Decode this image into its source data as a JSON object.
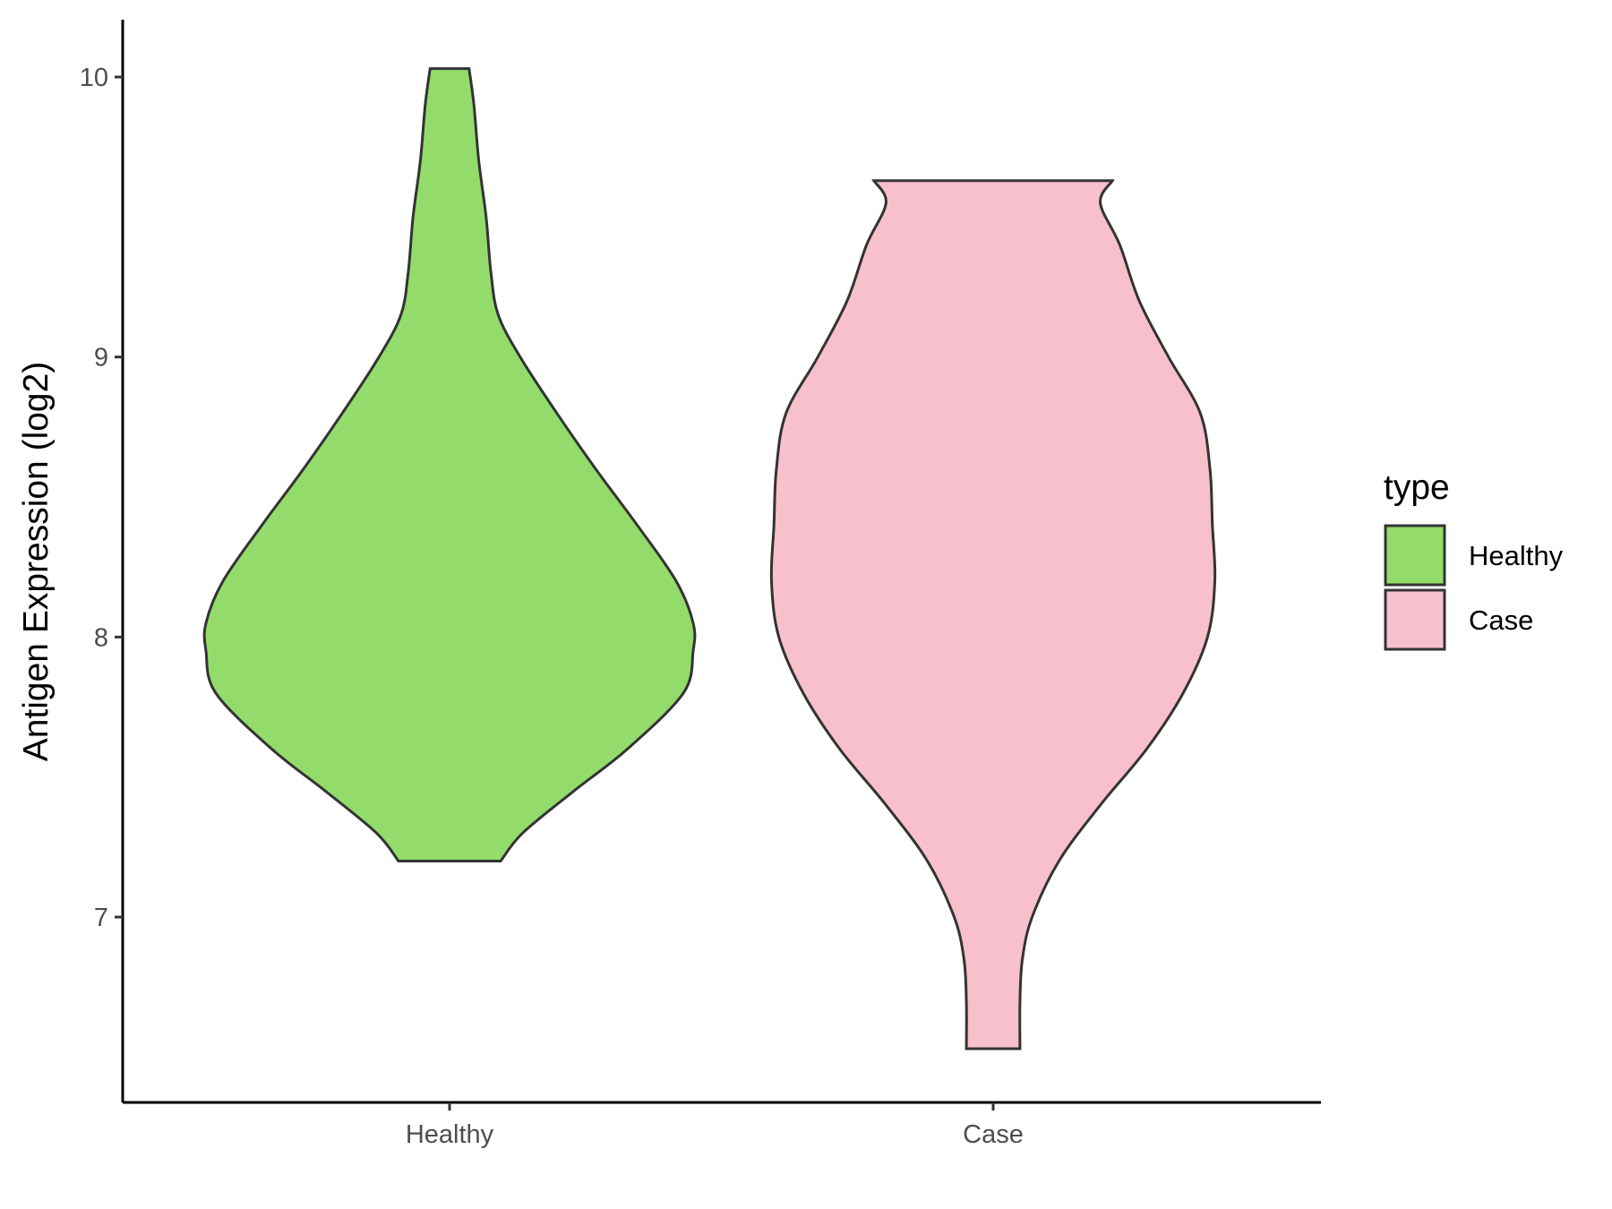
{
  "chart_data": {
    "type": "violin",
    "ylabel": "Antigen Expression (log2)",
    "xlabel": "",
    "categories": [
      "Healthy",
      "Case"
    ],
    "ylim": [
      6.35,
      10.2
    ],
    "yticks": [
      7,
      8,
      9,
      10
    ],
    "legend": {
      "title": "type",
      "position": "right",
      "entries": [
        {
          "label": "Healthy",
          "color": "#93dc6b"
        },
        {
          "label": "Case",
          "color": "#f8c0cc"
        }
      ]
    },
    "grid": false,
    "series": [
      {
        "name": "Healthy",
        "color": "#93dc6b",
        "min": 7.2,
        "max": 10.03,
        "density_profile": [
          [
            7.2,
            0.21
          ],
          [
            7.3,
            0.3
          ],
          [
            7.45,
            0.51
          ],
          [
            7.6,
            0.73
          ],
          [
            7.8,
            0.96
          ],
          [
            7.95,
            1.0
          ],
          [
            8.05,
            1.0
          ],
          [
            8.2,
            0.93
          ],
          [
            8.4,
            0.77
          ],
          [
            8.6,
            0.6
          ],
          [
            8.8,
            0.44
          ],
          [
            9.0,
            0.29
          ],
          [
            9.15,
            0.2
          ],
          [
            9.3,
            0.17
          ],
          [
            9.5,
            0.15
          ],
          [
            9.7,
            0.12
          ],
          [
            9.9,
            0.1
          ],
          [
            10.03,
            0.08
          ]
        ]
      },
      {
        "name": "Case",
        "color": "#f8c0cc",
        "min": 6.53,
        "max": 9.63,
        "density_profile": [
          [
            6.53,
            0.11
          ],
          [
            6.7,
            0.11
          ],
          [
            6.85,
            0.12
          ],
          [
            7.0,
            0.16
          ],
          [
            7.2,
            0.27
          ],
          [
            7.4,
            0.44
          ],
          [
            7.6,
            0.63
          ],
          [
            7.8,
            0.78
          ],
          [
            8.0,
            0.88
          ],
          [
            8.2,
            0.91
          ],
          [
            8.4,
            0.9
          ],
          [
            8.6,
            0.89
          ],
          [
            8.8,
            0.85
          ],
          [
            9.0,
            0.72
          ],
          [
            9.2,
            0.6
          ],
          [
            9.4,
            0.52
          ],
          [
            9.55,
            0.44
          ],
          [
            9.63,
            0.49
          ]
        ]
      }
    ]
  }
}
